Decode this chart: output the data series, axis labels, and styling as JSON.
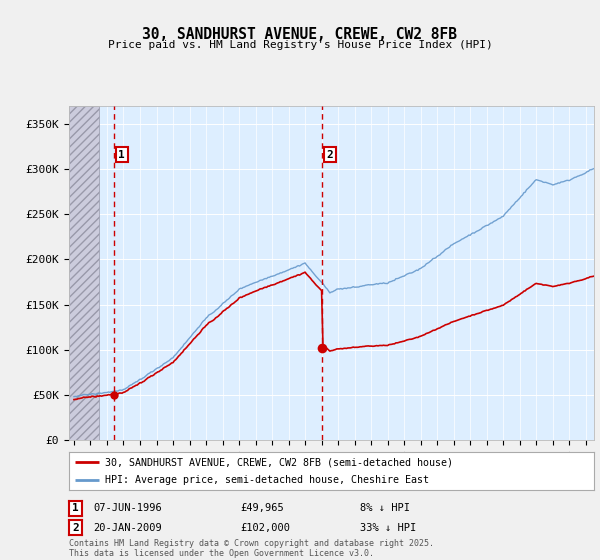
{
  "title": "30, SANDHURST AVENUE, CREWE, CW2 8FB",
  "subtitle": "Price paid vs. HM Land Registry's House Price Index (HPI)",
  "legend_line1": "30, SANDHURST AVENUE, CREWE, CW2 8FB (semi-detached house)",
  "legend_line2": "HPI: Average price, semi-detached house, Cheshire East",
  "footer": "Contains HM Land Registry data © Crown copyright and database right 2025.\nThis data is licensed under the Open Government Licence v3.0.",
  "sale1_date": "07-JUN-1996",
  "sale1_price": "£49,965",
  "sale1_hpi": "8% ↓ HPI",
  "sale2_date": "20-JAN-2009",
  "sale2_price": "£102,000",
  "sale2_hpi": "33% ↓ HPI",
  "xlim_start": 1993.7,
  "xlim_end": 2025.5,
  "ylim_bottom": 0,
  "ylim_top": 370000,
  "yticks": [
    0,
    50000,
    100000,
    150000,
    200000,
    250000,
    300000,
    350000
  ],
  "ytick_labels": [
    "£0",
    "£50K",
    "£100K",
    "£150K",
    "£200K",
    "£250K",
    "£300K",
    "£350K"
  ],
  "hatch_region_end": 1995.5,
  "sale1_x": 1996.44,
  "sale2_x": 2009.05,
  "sale1_y": 49965,
  "sale2_y": 102000,
  "red_color": "#cc0000",
  "blue_color": "#6699cc",
  "bg_color": "#ddeeff",
  "grid_color": "#ffffff",
  "vline_color": "#cc0000",
  "fig_bg": "#f0f0f0"
}
